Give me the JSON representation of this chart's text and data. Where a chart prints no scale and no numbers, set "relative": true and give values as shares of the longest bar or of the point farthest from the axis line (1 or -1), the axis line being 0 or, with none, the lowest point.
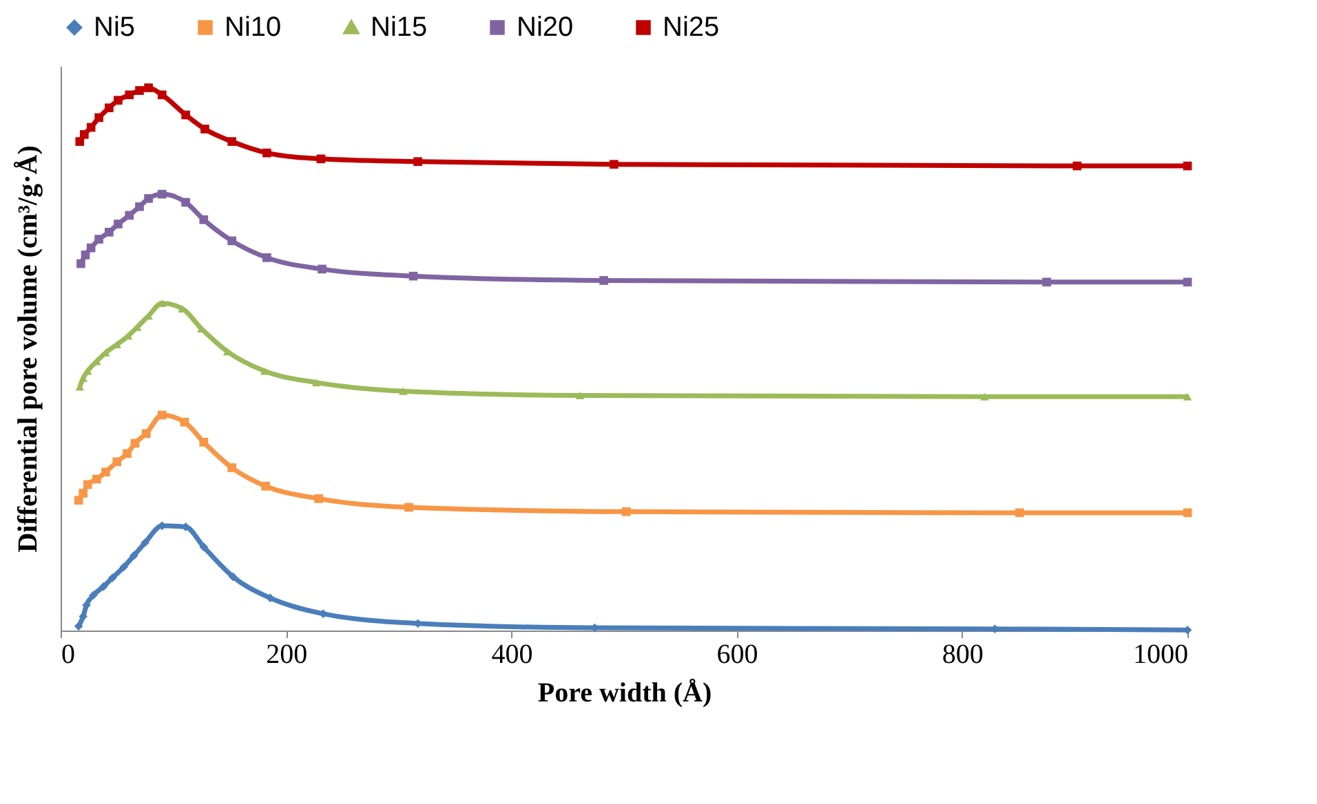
{
  "chart_data": {
    "type": "line",
    "xlabel": "Pore width (Å)",
    "ylabel": "Differential pore volume (cm³/g·Å)",
    "relative": true,
    "xlim": [
      0,
      1000
    ],
    "xticks": [
      0,
      200,
      400,
      600,
      800,
      1000
    ],
    "grid": false,
    "legend": "top",
    "series": [
      {
        "name": "Ni5",
        "color": "#4a7ebb",
        "marker": "diamond",
        "x": [
          16,
          20,
          23,
          29,
          38,
          46,
          56,
          65,
          75,
          90,
          111,
          127,
          153,
          186,
          233,
          317,
          474,
          829,
          1000
        ],
        "values": [
          0.008,
          0.026,
          0.047,
          0.065,
          0.081,
          0.097,
          0.117,
          0.138,
          0.162,
          0.193,
          0.191,
          0.154,
          0.099,
          0.06,
          0.031,
          0.013,
          0.005,
          0.003,
          0.001
        ]
      },
      {
        "name": "Ni10",
        "color": "#f79646",
        "marker": "square",
        "x": [
          16,
          20,
          24,
          32,
          40,
          50,
          59,
          66,
          76,
          90,
          110,
          127,
          152,
          182,
          229,
          309,
          502,
          851,
          1000
        ],
        "values": [
          0.24,
          0.253,
          0.269,
          0.279,
          0.292,
          0.311,
          0.326,
          0.345,
          0.363,
          0.397,
          0.384,
          0.347,
          0.3,
          0.266,
          0.243,
          0.227,
          0.219,
          0.217,
          0.217
        ]
      },
      {
        "name": "Ni15",
        "color": "#9bbb59",
        "marker": "triangle",
        "x": [
          17,
          20,
          24,
          32,
          40,
          50,
          60,
          68,
          78,
          90,
          108,
          125,
          148,
          181,
          227,
          304,
          461,
          820,
          1000
        ],
        "values": [
          0.449,
          0.465,
          0.478,
          0.496,
          0.512,
          0.527,
          0.543,
          0.559,
          0.58,
          0.603,
          0.593,
          0.556,
          0.514,
          0.478,
          0.457,
          0.441,
          0.433,
          0.431,
          0.431
        ]
      },
      {
        "name": "Ni20",
        "color": "#8064a2",
        "marker": "square",
        "x": [
          18,
          22,
          27,
          34,
          43,
          51,
          61,
          70,
          78,
          90,
          111,
          127,
          152,
          183,
          232,
          313,
          482,
          875,
          1000
        ],
        "values": [
          0.676,
          0.692,
          0.705,
          0.721,
          0.734,
          0.749,
          0.765,
          0.781,
          0.796,
          0.804,
          0.789,
          0.757,
          0.718,
          0.687,
          0.666,
          0.653,
          0.645,
          0.642,
          0.642
        ]
      },
      {
        "name": "Ni25",
        "color": "#c00000",
        "marker": "square",
        "x": [
          17,
          21,
          27,
          34,
          43,
          51,
          61,
          70,
          78,
          90,
          111,
          128,
          152,
          183,
          231,
          317,
          491,
          902,
          1000
        ],
        "values": [
          0.901,
          0.914,
          0.927,
          0.945,
          0.963,
          0.977,
          0.987,
          0.995,
          1.0,
          0.987,
          0.95,
          0.924,
          0.901,
          0.88,
          0.869,
          0.864,
          0.859,
          0.856,
          0.856
        ]
      }
    ]
  }
}
